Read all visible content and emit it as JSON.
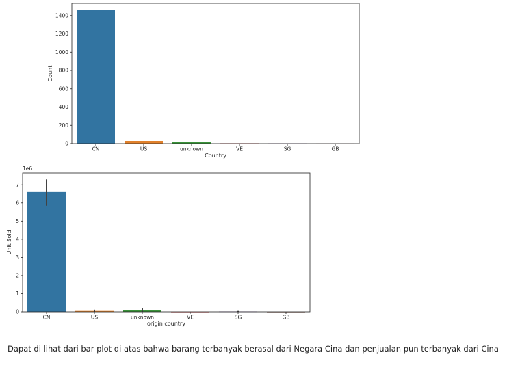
{
  "chart_data": [
    {
      "type": "bar",
      "categories": [
        "CN",
        "US",
        "unknown",
        "VE",
        "SG",
        "GB"
      ],
      "values": [
        1460,
        30,
        15,
        4,
        3,
        1
      ],
      "colors": [
        "#3274a1",
        "#e1812c",
        "#3a923a",
        "#c03d3e",
        "#9372b2",
        "#845b53"
      ],
      "xlabel": "Country",
      "ylabel": "Count",
      "ylim": [
        0,
        1533
      ],
      "yticks": [
        0,
        200,
        400,
        600,
        800,
        1000,
        1200,
        1400
      ],
      "ytick_labels": [
        "0",
        "200",
        "400",
        "600",
        "800",
        "1000",
        "1200",
        "1400"
      ]
    },
    {
      "type": "bar",
      "categories": [
        "CN",
        "US",
        "unknown",
        "VE",
        "SG",
        "GB"
      ],
      "values": [
        6.6,
        0.05,
        0.1,
        0.005,
        0.02,
        0.003
      ],
      "error": [
        [
          5.85,
          7.3
        ],
        [
          0,
          0.12
        ],
        [
          0,
          0.22
        ],
        null,
        [
          0,
          0.05
        ],
        null
      ],
      "colors": [
        "#3274a1",
        "#e1812c",
        "#3a923a",
        "#c03d3e",
        "#9372b2",
        "#845b53"
      ],
      "xlabel": "origin country",
      "ylabel": "Unit Sold",
      "scale_label": "1e6",
      "ylim": [
        0,
        7.65
      ],
      "yticks": [
        0,
        1,
        2,
        3,
        4,
        5,
        6,
        7
      ],
      "ytick_labels": [
        "0",
        "1",
        "2",
        "3",
        "4",
        "5",
        "6",
        "7"
      ]
    }
  ],
  "caption": "Dapat di lihat dari bar plot di atas bahwa barang terbanyak berasal dari Negara Cina dan penjualan pun terbanyak dari Cina"
}
